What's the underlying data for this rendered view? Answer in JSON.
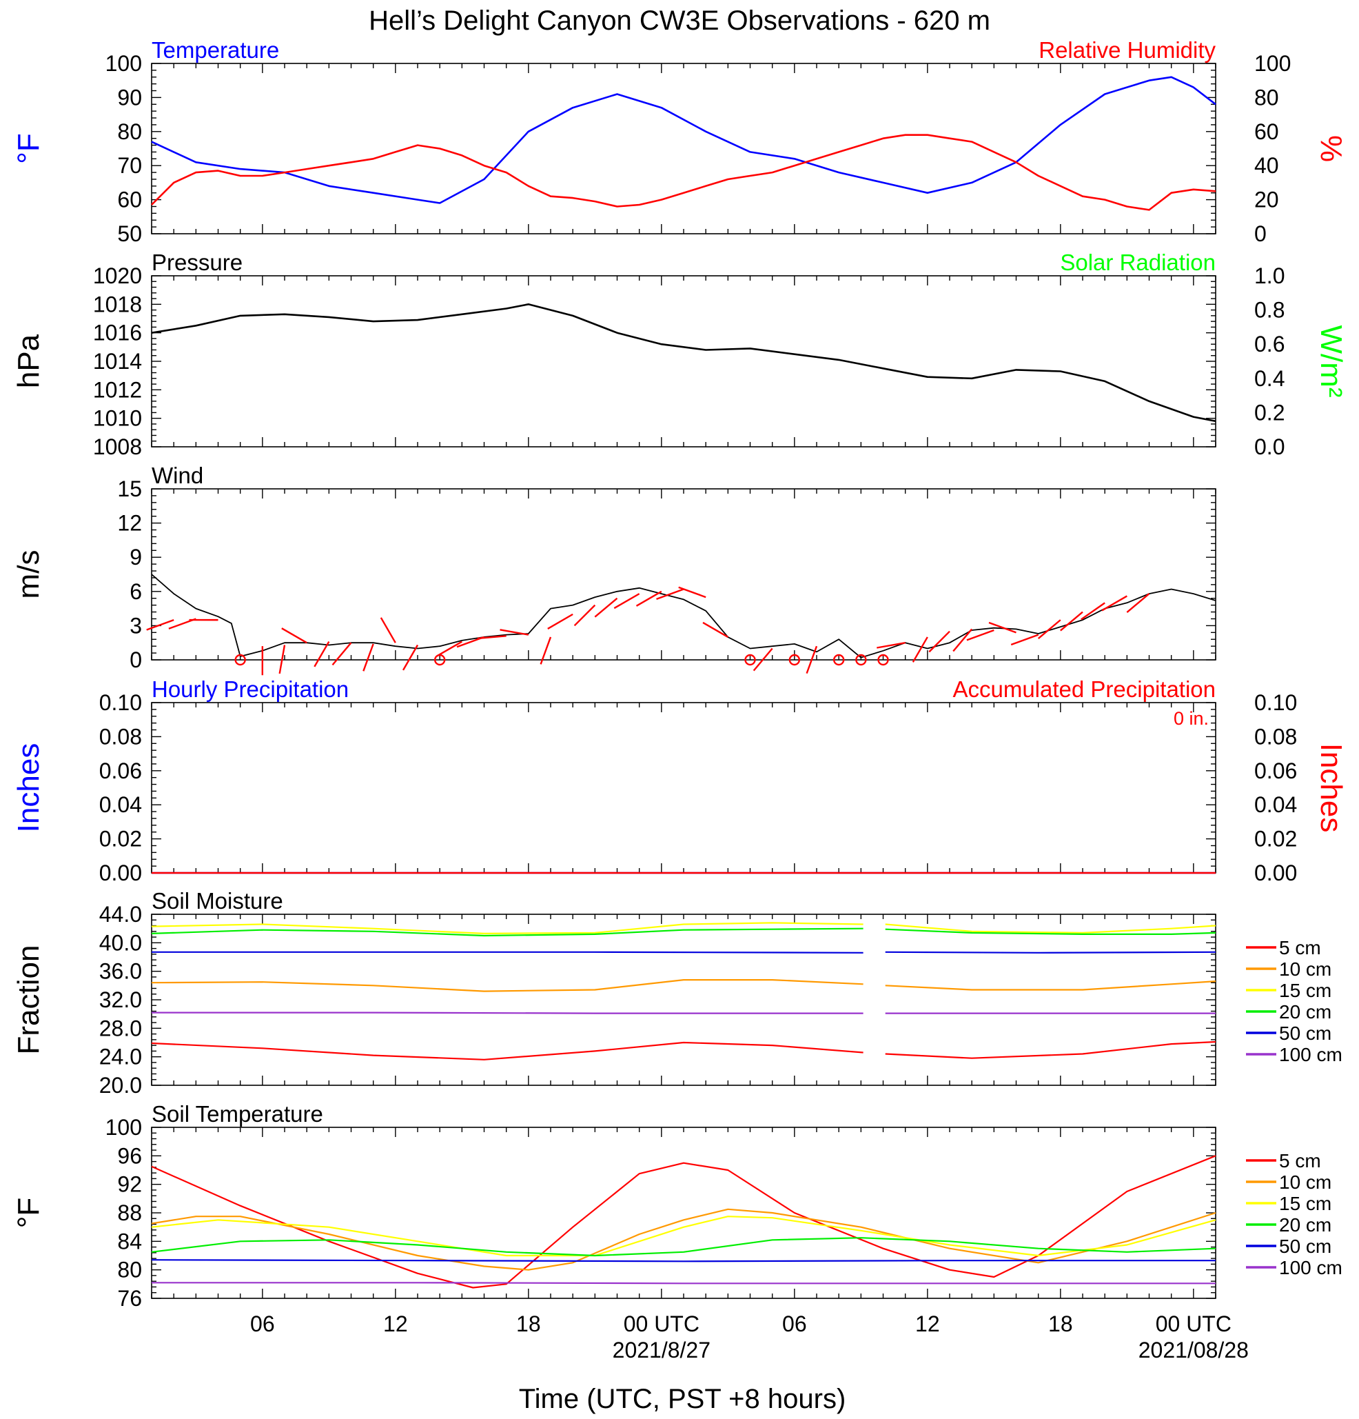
{
  "title": "Hell’s Delight Canyon CW3E Observations - 620 m",
  "xaxis": {
    "label": "Time (UTC, PST +8 hours)",
    "start": "2021-08-26T01:00Z",
    "end": "2021-08-28T01:00Z",
    "ticks": [
      {
        "hour": 5,
        "label": "06"
      },
      {
        "hour": 11,
        "label": "12"
      },
      {
        "hour": 17,
        "label": "18"
      },
      {
        "hour": 23,
        "label": "00 UTC"
      },
      {
        "hour": 29,
        "label": "06"
      },
      {
        "hour": 35,
        "label": "12"
      },
      {
        "hour": 41,
        "label": "18"
      },
      {
        "hour": 47,
        "label": "00 UTC"
      }
    ],
    "date_labels": [
      {
        "hour": 23,
        "label": "2021/8/27"
      },
      {
        "hour": 47,
        "label": "2021/08/28"
      }
    ]
  },
  "colors": {
    "temperature": "#0000ff",
    "humidity": "#ff0000",
    "pressure": "#000000",
    "solar": "#00ff00",
    "wind": "#000000",
    "barbs": "#ff0000",
    "hourly_precip": "#0000ff",
    "accum_precip": "#ff0000",
    "depth_5": "#ff0000",
    "depth_10": "#ff9900",
    "depth_15": "#ffff00",
    "depth_20": "#00ee00",
    "depth_50": "#0000dd",
    "depth_100": "#9933cc"
  },
  "chart_data": [
    {
      "type": "line",
      "title_left": "Temperature",
      "title_right": "Relative Humidity",
      "ylabel_left": "°F",
      "ylabel_right": "%",
      "ylim_left": [
        50,
        100
      ],
      "yticks_left": [
        "50",
        "60",
        "70",
        "80",
        "90",
        "100"
      ],
      "ylim_right": [
        0,
        100
      ],
      "yticks_right": [
        "0",
        "20",
        "40",
        "60",
        "80",
        "100"
      ],
      "series": [
        {
          "axis": "left",
          "x": [
            0,
            2,
            4,
            6,
            8,
            10,
            12,
            13,
            15,
            17,
            19,
            21,
            23,
            25,
            27,
            29,
            31,
            33,
            35,
            37,
            39,
            41,
            43,
            45,
            46,
            47,
            48
          ],
          "values": [
            77,
            71,
            69,
            68,
            64,
            62,
            60,
            59,
            66,
            80,
            87,
            91,
            87,
            80,
            74,
            72,
            68,
            65,
            62,
            65,
            71,
            82,
            91,
            95,
            96,
            93,
            88
          ]
        },
        {
          "axis": "right",
          "x": [
            0,
            1,
            2,
            3,
            4,
            5,
            6,
            7,
            8,
            9,
            10,
            11,
            12,
            13,
            14,
            15,
            16,
            17,
            18,
            19,
            20,
            21,
            22,
            23,
            24,
            25,
            26,
            27,
            28,
            29,
            30,
            31,
            32,
            33,
            34,
            35,
            36,
            37,
            38,
            39,
            40,
            41,
            42,
            43,
            44,
            45,
            46,
            47,
            48
          ],
          "values": [
            17,
            30,
            36,
            37,
            34,
            34,
            36,
            38,
            40,
            42,
            44,
            48,
            52,
            50,
            46,
            40,
            36,
            28,
            22,
            21,
            19,
            16,
            17,
            20,
            24,
            28,
            32,
            34,
            36,
            40,
            44,
            48,
            52,
            56,
            58,
            58,
            56,
            54,
            48,
            42,
            34,
            28,
            22,
            20,
            16,
            14,
            24,
            26,
            25
          ]
        }
      ]
    },
    {
      "type": "line",
      "title_left": "Pressure",
      "title_right": "Solar Radiation",
      "ylabel_left": "hPa",
      "ylabel_right": "W/m²",
      "ylim_left": [
        1008,
        1020
      ],
      "yticks_left": [
        "1008",
        "1010",
        "1012",
        "1014",
        "1016",
        "1018",
        "1020"
      ],
      "ylim_right": [
        0.0,
        1.0
      ],
      "yticks_right": [
        "0.0",
        "0.2",
        "0.4",
        "0.6",
        "0.8",
        "1.0"
      ],
      "series": [
        {
          "axis": "left",
          "x": [
            0,
            2,
            4,
            6,
            8,
            10,
            12,
            14,
            16,
            17,
            19,
            21,
            23,
            25,
            27,
            29,
            31,
            33,
            35,
            37,
            39,
            41,
            43,
            45,
            47,
            48
          ],
          "values": [
            1016,
            1016.5,
            1017.2,
            1017.3,
            1017.1,
            1016.8,
            1016.9,
            1017.3,
            1017.7,
            1018,
            1017.2,
            1016,
            1015.2,
            1014.8,
            1014.9,
            1014.5,
            1014.1,
            1013.5,
            1012.9,
            1012.8,
            1013.4,
            1013.3,
            1012.6,
            1011.2,
            1010.1,
            1009.8
          ]
        }
      ]
    },
    {
      "type": "line",
      "title_left": "Wind",
      "ylabel_left": "m/s",
      "ylim_left": [
        0,
        15
      ],
      "yticks_left": [
        "0",
        "3",
        "6",
        "9",
        "12",
        "15"
      ],
      "series": [
        {
          "axis": "left",
          "x": [
            0,
            1,
            2,
            3,
            3.6,
            4,
            5,
            6,
            7,
            8,
            9,
            10,
            11,
            12,
            13,
            14,
            15,
            16,
            17,
            18,
            19,
            20,
            21,
            22,
            23,
            24,
            25,
            26,
            27,
            28,
            29,
            30,
            31,
            32,
            33,
            34,
            35,
            36,
            37,
            38,
            39,
            40,
            41,
            42,
            43,
            44,
            45,
            46,
            47,
            48
          ],
          "values": [
            7.5,
            5.8,
            4.5,
            3.8,
            3.2,
            0.3,
            0.8,
            1.5,
            1.5,
            1.3,
            1.5,
            1.5,
            1.2,
            1.0,
            1.2,
            1.7,
            2.0,
            2.2,
            2.3,
            4.5,
            4.8,
            5.5,
            6.0,
            6.3,
            5.8,
            5.3,
            4.3,
            2.0,
            1.0,
            1.2,
            1.4,
            0.7,
            1.8,
            0.2,
            0.8,
            1.5,
            1.0,
            1.5,
            2.6,
            2.8,
            2.7,
            2.3,
            2.9,
            3.5,
            4.5,
            5.0,
            5.8,
            6.2,
            5.8,
            5.2
          ]
        }
      ],
      "barbs": [
        {
          "hour": 1,
          "speed": 3.5,
          "dir": 250
        },
        {
          "hour": 2,
          "speed": 3.6,
          "dir": 250
        },
        {
          "hour": 3,
          "speed": 3.5,
          "dir": 270
        },
        {
          "hour": 4,
          "speed": 0,
          "calm": true
        },
        {
          "hour": 5,
          "speed": 1.2,
          "dir": 180
        },
        {
          "hour": 6,
          "speed": 1.3,
          "dir": 190
        },
        {
          "hour": 7,
          "speed": 1.5,
          "dir": 300
        },
        {
          "hour": 8,
          "speed": 1.6,
          "dir": 210
        },
        {
          "hour": 9,
          "speed": 1.5,
          "dir": 220
        },
        {
          "hour": 10,
          "speed": 1.4,
          "dir": 200
        },
        {
          "hour": 11,
          "speed": 1.5,
          "dir": 330
        },
        {
          "hour": 12,
          "speed": 1.3,
          "dir": 210
        },
        {
          "hour": 13,
          "speed": 0,
          "calm": true
        },
        {
          "hour": 14,
          "speed": 1.6,
          "dir": 240
        },
        {
          "hour": 15,
          "speed": 2.0,
          "dir": 250
        },
        {
          "hour": 16,
          "speed": 2.1,
          "dir": 265
        },
        {
          "hour": 17,
          "speed": 2.2,
          "dir": 280
        },
        {
          "hour": 18,
          "speed": 2.0,
          "dir": 200
        },
        {
          "hour": 19,
          "speed": 4.0,
          "dir": 240
        },
        {
          "hour": 20,
          "speed": 4.8,
          "dir": 225
        },
        {
          "hour": 21,
          "speed": 5.4,
          "dir": 230
        },
        {
          "hour": 22,
          "speed": 5.8,
          "dir": 240
        },
        {
          "hour": 23,
          "speed": 6.0,
          "dir": 240
        },
        {
          "hour": 24,
          "speed": 6.2,
          "dir": 250
        },
        {
          "hour": 25,
          "speed": 5.5,
          "dir": 290
        },
        {
          "hour": 26,
          "speed": 2.0,
          "dir": 300
        },
        {
          "hour": 27,
          "speed": 0,
          "calm": true
        },
        {
          "hour": 28,
          "speed": 1.0,
          "dir": 220
        },
        {
          "hour": 29,
          "speed": 0,
          "calm": true
        },
        {
          "hour": 30,
          "speed": 1.2,
          "dir": 200
        },
        {
          "hour": 31,
          "speed": 0.3,
          "calm": true
        },
        {
          "hour": 32,
          "speed": 0,
          "calm": true
        },
        {
          "hour": 33,
          "speed": 0,
          "calm": true
        },
        {
          "hour": 34,
          "speed": 1.5,
          "dir": 260
        },
        {
          "hour": 35,
          "speed": 2.0,
          "dir": 210
        },
        {
          "hour": 36,
          "speed": 2.5,
          "dir": 225
        },
        {
          "hour": 37,
          "speed": 2.7,
          "dir": 220
        },
        {
          "hour": 38,
          "speed": 2.6,
          "dir": 250
        },
        {
          "hour": 39,
          "speed": 2.4,
          "dir": 290
        },
        {
          "hour": 40,
          "speed": 2.2,
          "dir": 250
        },
        {
          "hour": 41,
          "speed": 3.5,
          "dir": 230
        },
        {
          "hour": 42,
          "speed": 4.2,
          "dir": 230
        },
        {
          "hour": 43,
          "speed": 5.0,
          "dir": 235
        },
        {
          "hour": 44,
          "speed": 5.6,
          "dir": 240
        },
        {
          "hour": 45,
          "speed": 5.8,
          "dir": 230
        }
      ]
    },
    {
      "type": "line",
      "title_left": "Hourly Precipitation",
      "title_right": "Accumulated Precipitation",
      "annotation": "0 in.",
      "ylabel_left": "Inches",
      "ylabel_right": "Inches",
      "ylim_left": [
        0,
        0.1
      ],
      "yticks_left": [
        "0.00",
        "0.02",
        "0.04",
        "0.06",
        "0.08",
        "0.10"
      ],
      "ylim_right": [
        0,
        0.1
      ],
      "yticks_right": [
        "0.00",
        "0.02",
        "0.04",
        "0.06",
        "0.08",
        "0.10"
      ],
      "series": [
        {
          "axis": "left",
          "key": "hourly",
          "x": [
            0,
            48
          ],
          "values": [
            0,
            0
          ]
        },
        {
          "axis": "right",
          "key": "accum",
          "x": [
            0,
            48
          ],
          "values": [
            0,
            0
          ]
        }
      ]
    },
    {
      "type": "line",
      "title_left": "Soil Moisture",
      "ylabel_left": "Fraction",
      "ylim_left": [
        20,
        44
      ],
      "yticks_left": [
        "20.0",
        "24.0",
        "28.0",
        "32.0",
        "36.0",
        "40.0",
        "44.0"
      ],
      "gap_hours": [
        32.1,
        33.1
      ],
      "legend": [
        "5 cm",
        "10 cm",
        "15 cm",
        "20 cm",
        "50 cm",
        "100 cm"
      ],
      "series": [
        {
          "name": "5 cm",
          "x": [
            0,
            5,
            10,
            15,
            20,
            24,
            28,
            32.1,
            33.1,
            37,
            42,
            46,
            48
          ],
          "values": [
            25.9,
            25.2,
            24.2,
            23.6,
            24.8,
            26.0,
            25.6,
            24.6,
            24.4,
            23.8,
            24.4,
            25.8,
            26.1
          ]
        },
        {
          "name": "10 cm",
          "x": [
            0,
            5,
            10,
            15,
            20,
            24,
            28,
            32.1,
            33.1,
            37,
            42,
            46,
            48
          ],
          "values": [
            34.4,
            34.5,
            34.0,
            33.2,
            33.4,
            34.8,
            34.8,
            34.2,
            34.0,
            33.4,
            33.4,
            34.2,
            34.6
          ]
        },
        {
          "name": "15 cm",
          "x": [
            0,
            5,
            10,
            15,
            20,
            24,
            28,
            32.1,
            33.1,
            37,
            42,
            46,
            48
          ],
          "values": [
            42.3,
            42.6,
            42.0,
            41.3,
            41.4,
            42.6,
            42.8,
            42.6,
            42.6,
            41.6,
            41.4,
            42.0,
            42.4
          ]
        },
        {
          "name": "20 cm",
          "x": [
            0,
            5,
            10,
            15,
            20,
            24,
            28,
            32.1,
            33.1,
            37,
            42,
            46,
            48
          ],
          "values": [
            41.3,
            41.8,
            41.6,
            41.0,
            41.2,
            41.8,
            41.9,
            42.0,
            41.9,
            41.4,
            41.2,
            41.2,
            41.4
          ]
        },
        {
          "name": "50 cm",
          "x": [
            0,
            10,
            20,
            32.1,
            33.1,
            40,
            48
          ],
          "values": [
            38.7,
            38.7,
            38.7,
            38.6,
            38.7,
            38.6,
            38.7
          ]
        },
        {
          "name": "100 cm",
          "x": [
            0,
            10,
            20,
            32.1,
            33.1,
            40,
            48
          ],
          "values": [
            30.2,
            30.2,
            30.1,
            30.1,
            30.1,
            30.1,
            30.1
          ]
        }
      ]
    },
    {
      "type": "line",
      "title_left": "Soil Temperature",
      "ylabel_left": "°F",
      "ylim_left": [
        76,
        100
      ],
      "yticks_left": [
        "76",
        "80",
        "84",
        "88",
        "92",
        "96",
        "100"
      ],
      "legend": [
        "5 cm",
        "10 cm",
        "15 cm",
        "20 cm",
        "50 cm",
        "100 cm"
      ],
      "series": [
        {
          "name": "5 cm",
          "x": [
            0,
            4,
            8,
            12,
            14.5,
            16,
            19,
            22,
            24,
            26,
            29,
            33,
            36,
            38,
            40,
            44,
            48
          ],
          "values": [
            94.5,
            89,
            84,
            79.5,
            77.5,
            78,
            86,
            93.5,
            95,
            94,
            88,
            83,
            80,
            79,
            82,
            91,
            96
          ]
        },
        {
          "name": "10 cm",
          "x": [
            0,
            2,
            4,
            8,
            12,
            15,
            17,
            19,
            22,
            24,
            26,
            28,
            32,
            36,
            40,
            44,
            48
          ],
          "values": [
            86.5,
            87.5,
            87.5,
            85,
            82,
            80.5,
            80,
            81,
            85,
            87,
            88.5,
            88,
            86,
            83,
            81,
            84,
            88
          ]
        },
        {
          "name": "15 cm",
          "x": [
            0,
            3,
            8,
            12,
            16,
            20,
            24,
            26,
            28,
            32,
            36,
            40,
            44,
            48
          ],
          "values": [
            86,
            87,
            86,
            84,
            82,
            82,
            86,
            87.5,
            87.3,
            85.5,
            83.5,
            82,
            83.5,
            87
          ]
        },
        {
          "name": "20 cm",
          "x": [
            0,
            4,
            8,
            12,
            16,
            20,
            24,
            28,
            32,
            36,
            40,
            44,
            48
          ],
          "values": [
            82.5,
            84,
            84.2,
            83.5,
            82.5,
            82,
            82.5,
            84.2,
            84.5,
            84,
            83,
            82.5,
            83
          ]
        },
        {
          "name": "50 cm",
          "x": [
            0,
            12,
            24,
            36,
            48
          ],
          "values": [
            81.4,
            81.3,
            81.2,
            81.3,
            81.3
          ]
        },
        {
          "name": "100 cm",
          "x": [
            0,
            12,
            24,
            36,
            48
          ],
          "values": [
            78.2,
            78.2,
            78.1,
            78.1,
            78.1
          ]
        }
      ]
    }
  ]
}
